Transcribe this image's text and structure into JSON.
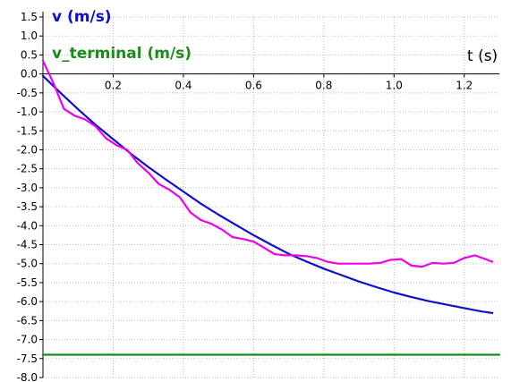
{
  "chart_data": {
    "type": "line",
    "xlabel": "t (s)",
    "series_labels": [
      "v (m/s)",
      "v_terminal (m/s)"
    ],
    "xlim": [
      0,
      1.3
    ],
    "ylim": [
      -8.0,
      1.5
    ],
    "x_ticks": [
      0.2,
      0.4,
      0.6,
      0.8,
      1.0,
      1.2
    ],
    "x_tick_labels": [
      "0.2",
      "0.4",
      "0.6",
      "0.8",
      "1.0",
      "1.2"
    ],
    "y_ticks": [
      1.5,
      1.0,
      0.5,
      0.0,
      -0.5,
      -1.0,
      -1.5,
      -2.0,
      -2.5,
      -3.0,
      -3.5,
      -4.0,
      -4.5,
      -5.0,
      -5.5,
      -6.0,
      -6.5,
      -7.0,
      -7.5,
      -8.0
    ],
    "y_tick_labels": [
      "1.5",
      "1.0",
      "0.5",
      "0.0",
      "-0.5",
      "-1.0",
      "-1.5",
      "-2.0",
      "-2.5",
      "-3.0",
      "-3.5",
      "-4.0",
      "-4.5",
      "-5.0",
      "-5.5",
      "-6.0",
      "-6.5",
      "-7.0",
      "-7.5",
      "-8.0"
    ],
    "grid": true,
    "series": [
      {
        "name": "v (m/s)",
        "color": "#1010cc",
        "x": [
          0,
          0.05,
          0.1,
          0.15,
          0.2,
          0.25,
          0.3,
          0.35,
          0.4,
          0.45,
          0.5,
          0.55,
          0.6,
          0.65,
          0.7,
          0.75,
          0.8,
          0.85,
          0.9,
          0.95,
          1.0,
          1.05,
          1.1,
          1.15,
          1.2,
          1.25,
          1.28
        ],
        "y": [
          -0.05,
          -0.5,
          -0.93,
          -1.34,
          -1.72,
          -2.1,
          -2.45,
          -2.78,
          -3.1,
          -3.42,
          -3.71,
          -3.98,
          -4.25,
          -4.5,
          -4.74,
          -4.94,
          -5.13,
          -5.3,
          -5.47,
          -5.62,
          -5.76,
          -5.88,
          -5.99,
          -6.08,
          -6.17,
          -6.26,
          -6.3
        ]
      },
      {
        "name": "",
        "color": "#ee00ee",
        "x": [
          0,
          0.03,
          0.06,
          0.09,
          0.12,
          0.15,
          0.18,
          0.21,
          0.24,
          0.27,
          0.3,
          0.33,
          0.36,
          0.39,
          0.42,
          0.45,
          0.48,
          0.51,
          0.54,
          0.57,
          0.6,
          0.63,
          0.66,
          0.69,
          0.72,
          0.75,
          0.78,
          0.81,
          0.84,
          0.87,
          0.9,
          0.93,
          0.96,
          0.99,
          1.02,
          1.05,
          1.08,
          1.11,
          1.14,
          1.17,
          1.2,
          1.23,
          1.26,
          1.28
        ],
        "y": [
          0.35,
          -0.25,
          -0.92,
          -1.1,
          -1.2,
          -1.38,
          -1.7,
          -1.88,
          -2.0,
          -2.35,
          -2.6,
          -2.9,
          -3.05,
          -3.25,
          -3.65,
          -3.85,
          -3.95,
          -4.1,
          -4.3,
          -4.35,
          -4.42,
          -4.58,
          -4.75,
          -4.78,
          -4.78,
          -4.8,
          -4.85,
          -4.95,
          -5.0,
          -5.0,
          -5.0,
          -5.0,
          -4.98,
          -4.9,
          -4.88,
          -5.05,
          -5.08,
          -4.98,
          -5.0,
          -4.98,
          -4.85,
          -4.78,
          -4.88,
          -4.95
        ]
      },
      {
        "name": "v_terminal (m/s)",
        "color": "#1a8c1a",
        "x": [
          0,
          1.3
        ],
        "y": [
          -7.4,
          -7.4
        ]
      }
    ]
  }
}
